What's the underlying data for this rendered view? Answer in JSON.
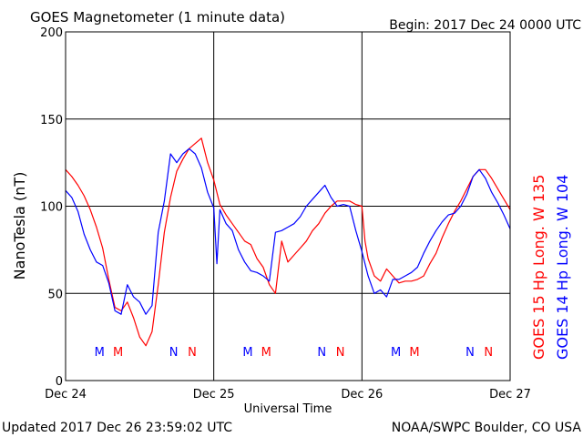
{
  "header": {
    "title": "GOES Magnetometer (1 minute data)",
    "begin": "Begin:  2017 Dec 24 0000 UTC"
  },
  "footer": {
    "updated": "Updated 2017 Dec 26 23:59:02 UTC",
    "source": "NOAA/SWPC Boulder, CO USA"
  },
  "chart_data": {
    "type": "line",
    "ylabel": "NanoTesla (nT)",
    "xlabel": "Universal Time",
    "ylim": [
      0,
      200
    ],
    "xlim": [
      0,
      72
    ],
    "x_unit": "hours since 2017 Dec 24 0000 UTC",
    "yticks": [
      0,
      50,
      100,
      150,
      200
    ],
    "xticks": [
      {
        "x": 0,
        "label": "Dec 24"
      },
      {
        "x": 24,
        "label": "Dec 25"
      },
      {
        "x": 48,
        "label": "Dec 26"
      },
      {
        "x": 72,
        "label": "Dec 27"
      }
    ],
    "grid": true,
    "series": [
      {
        "name": "GOES 15 Hp  Long. W 135",
        "color": "#ff0000",
        "points": [
          [
            0,
            121
          ],
          [
            1,
            117
          ],
          [
            2,
            112
          ],
          [
            3,
            106
          ],
          [
            4,
            98
          ],
          [
            5,
            88
          ],
          [
            6,
            76
          ],
          [
            7,
            58
          ],
          [
            8,
            42
          ],
          [
            9,
            40
          ],
          [
            10,
            45
          ],
          [
            11,
            36
          ],
          [
            12,
            25
          ],
          [
            13,
            20
          ],
          [
            14,
            28
          ],
          [
            15,
            55
          ],
          [
            16,
            85
          ],
          [
            17,
            105
          ],
          [
            18,
            120
          ],
          [
            19,
            127
          ],
          [
            20,
            133
          ],
          [
            21,
            136
          ],
          [
            22,
            139
          ],
          [
            23,
            125
          ],
          [
            24,
            115
          ],
          [
            25,
            101
          ],
          [
            26,
            95
          ],
          [
            27,
            90
          ],
          [
            28,
            85
          ],
          [
            29,
            80
          ],
          [
            30,
            78
          ],
          [
            31,
            70
          ],
          [
            32,
            65
          ],
          [
            33,
            55
          ],
          [
            34,
            50
          ],
          [
            35,
            80
          ],
          [
            36,
            68
          ],
          [
            37,
            72
          ],
          [
            38,
            76
          ],
          [
            39,
            80
          ],
          [
            40,
            86
          ],
          [
            41,
            90
          ],
          [
            42,
            96
          ],
          [
            43,
            100
          ],
          [
            44,
            103
          ],
          [
            45,
            103
          ],
          [
            46,
            103
          ],
          [
            47,
            101
          ],
          [
            48,
            100
          ],
          [
            48.5,
            80
          ],
          [
            49,
            70
          ],
          [
            50,
            60
          ],
          [
            51,
            57
          ],
          [
            52,
            64
          ],
          [
            53,
            60
          ],
          [
            54,
            56
          ],
          [
            55,
            57
          ],
          [
            56,
            57
          ],
          [
            57,
            58
          ],
          [
            58,
            60
          ],
          [
            59,
            67
          ],
          [
            60,
            73
          ],
          [
            61,
            82
          ],
          [
            62,
            90
          ],
          [
            63,
            97
          ],
          [
            64,
            103
          ],
          [
            65,
            110
          ],
          [
            66,
            117
          ],
          [
            67,
            121
          ],
          [
            68,
            121
          ],
          [
            69,
            116
          ],
          [
            70,
            110
          ],
          [
            71,
            104
          ],
          [
            72,
            98
          ]
        ]
      },
      {
        "name": "GOES 14 Hp  Long. W 104",
        "color": "#0000ff",
        "points": [
          [
            0,
            109
          ],
          [
            1,
            105
          ],
          [
            2,
            97
          ],
          [
            3,
            84
          ],
          [
            4,
            75
          ],
          [
            5,
            68
          ],
          [
            6,
            66
          ],
          [
            7,
            56
          ],
          [
            8,
            40
          ],
          [
            9,
            38
          ],
          [
            10,
            55
          ],
          [
            11,
            48
          ],
          [
            12,
            45
          ],
          [
            13,
            38
          ],
          [
            14,
            43
          ],
          [
            15,
            85
          ],
          [
            16,
            103
          ],
          [
            17,
            130
          ],
          [
            18,
            125
          ],
          [
            19,
            130
          ],
          [
            20,
            133
          ],
          [
            21,
            130
          ],
          [
            22,
            122
          ],
          [
            23,
            108
          ],
          [
            24,
            99
          ],
          [
            24.5,
            67
          ],
          [
            25,
            98
          ],
          [
            26,
            90
          ],
          [
            27,
            86
          ],
          [
            28,
            75
          ],
          [
            29,
            68
          ],
          [
            30,
            63
          ],
          [
            31,
            62
          ],
          [
            32,
            60
          ],
          [
            33,
            57
          ],
          [
            34,
            85
          ],
          [
            35,
            86
          ],
          [
            36,
            88
          ],
          [
            37,
            90
          ],
          [
            38,
            94
          ],
          [
            39,
            100
          ],
          [
            40,
            104
          ],
          [
            41,
            108
          ],
          [
            42,
            112
          ],
          [
            43,
            105
          ],
          [
            44,
            100
          ],
          [
            45,
            101
          ],
          [
            46,
            100
          ],
          [
            47,
            86
          ],
          [
            48,
            74
          ],
          [
            49,
            60
          ],
          [
            50,
            50
          ],
          [
            51,
            52
          ],
          [
            52,
            48
          ],
          [
            53,
            58
          ],
          [
            54,
            58
          ],
          [
            55,
            60
          ],
          [
            56,
            62
          ],
          [
            57,
            65
          ],
          [
            58,
            73
          ],
          [
            59,
            80
          ],
          [
            60,
            86
          ],
          [
            61,
            91
          ],
          [
            62,
            95
          ],
          [
            63,
            96
          ],
          [
            64,
            100
          ],
          [
            65,
            107
          ],
          [
            66,
            117
          ],
          [
            67,
            121
          ],
          [
            68,
            116
          ],
          [
            69,
            108
          ],
          [
            70,
            102
          ],
          [
            71,
            95
          ],
          [
            72,
            87
          ]
        ]
      }
    ],
    "markers": [
      {
        "x": 5.5,
        "label": "M",
        "color": "#0000ff"
      },
      {
        "x": 8.5,
        "label": "M",
        "color": "#ff0000"
      },
      {
        "x": 17.5,
        "label": "N",
        "color": "#0000ff"
      },
      {
        "x": 20.5,
        "label": "N",
        "color": "#ff0000"
      },
      {
        "x": 29.5,
        "label": "M",
        "color": "#0000ff"
      },
      {
        "x": 32.5,
        "label": "M",
        "color": "#ff0000"
      },
      {
        "x": 41.5,
        "label": "N",
        "color": "#0000ff"
      },
      {
        "x": 44.5,
        "label": "N",
        "color": "#ff0000"
      },
      {
        "x": 53.5,
        "label": "M",
        "color": "#0000ff"
      },
      {
        "x": 56.5,
        "label": "M",
        "color": "#ff0000"
      },
      {
        "x": 65.5,
        "label": "N",
        "color": "#0000ff"
      },
      {
        "x": 68.5,
        "label": "N",
        "color": "#ff0000"
      }
    ],
    "legend_placement": "right"
  }
}
